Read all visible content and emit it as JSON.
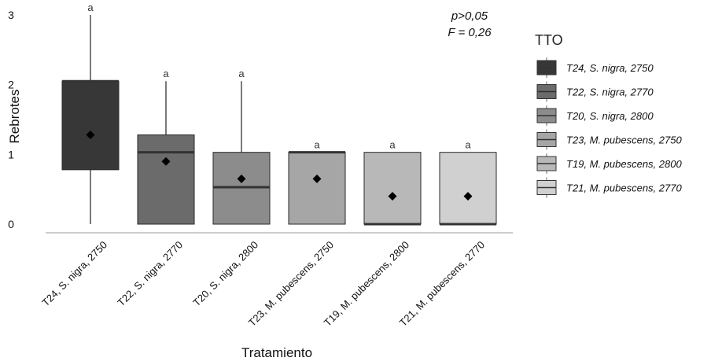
{
  "chart_data": {
    "type": "boxplot",
    "ylabel": "Rebrotes",
    "xlabel": "Tratamiento",
    "ylim": [
      0,
      3
    ],
    "yticks": [
      "0",
      "1",
      "2",
      "3"
    ],
    "legend_title": "TTO",
    "legend_position": "right",
    "annotation": {
      "line1": "p>0,05",
      "line2": "F = 0,26"
    },
    "categories": [
      {
        "label": "T24, S. nigra, 2750",
        "legend": "T24, S. nigra, 2750",
        "color": "#373737",
        "min": 0,
        "q1": 0.78,
        "median": 2.05,
        "q3": 2.05,
        "max": 3.0,
        "mean": 1.28,
        "letter": "a"
      },
      {
        "label": "T22, S. nigra, 2770",
        "legend": "T22, S. nigra, 2770",
        "color": "#6b6b6b",
        "min": 0,
        "q1": 0,
        "median": 1.03,
        "q3": 1.28,
        "max": 2.05,
        "mean": 0.9,
        "letter": "a"
      },
      {
        "label": "T20, S. nigra, 2800",
        "legend": "T20, S. nigra, 2800",
        "color": "#8c8c8c",
        "min": 0,
        "q1": 0,
        "median": 0.53,
        "q3": 1.03,
        "max": 2.05,
        "mean": 0.65,
        "letter": "a"
      },
      {
        "label": "T23, M. pubescens, 2750",
        "legend": "T23, M. pubescens, 2750",
        "color": "#a6a6a6",
        "min": 0,
        "q1": 0,
        "median": 1.03,
        "q3": 1.03,
        "max": 1.03,
        "mean": 0.65,
        "letter": "a"
      },
      {
        "label": "T19, M. pubescens, 2800",
        "legend": "T19, M. pubescens, 2800",
        "color": "#b8b8b8",
        "min": 0,
        "q1": 0,
        "median": 0,
        "q3": 1.03,
        "max": 1.03,
        "mean": 0.4,
        "letter": "a"
      },
      {
        "label": "T21, M. pubescens, 2770",
        "legend": "T21, M. pubescens, 2770",
        "color": "#d0d0d0",
        "min": 0,
        "q1": 0,
        "median": 0,
        "q3": 1.03,
        "max": 1.03,
        "mean": 0.4,
        "letter": "a"
      }
    ]
  }
}
